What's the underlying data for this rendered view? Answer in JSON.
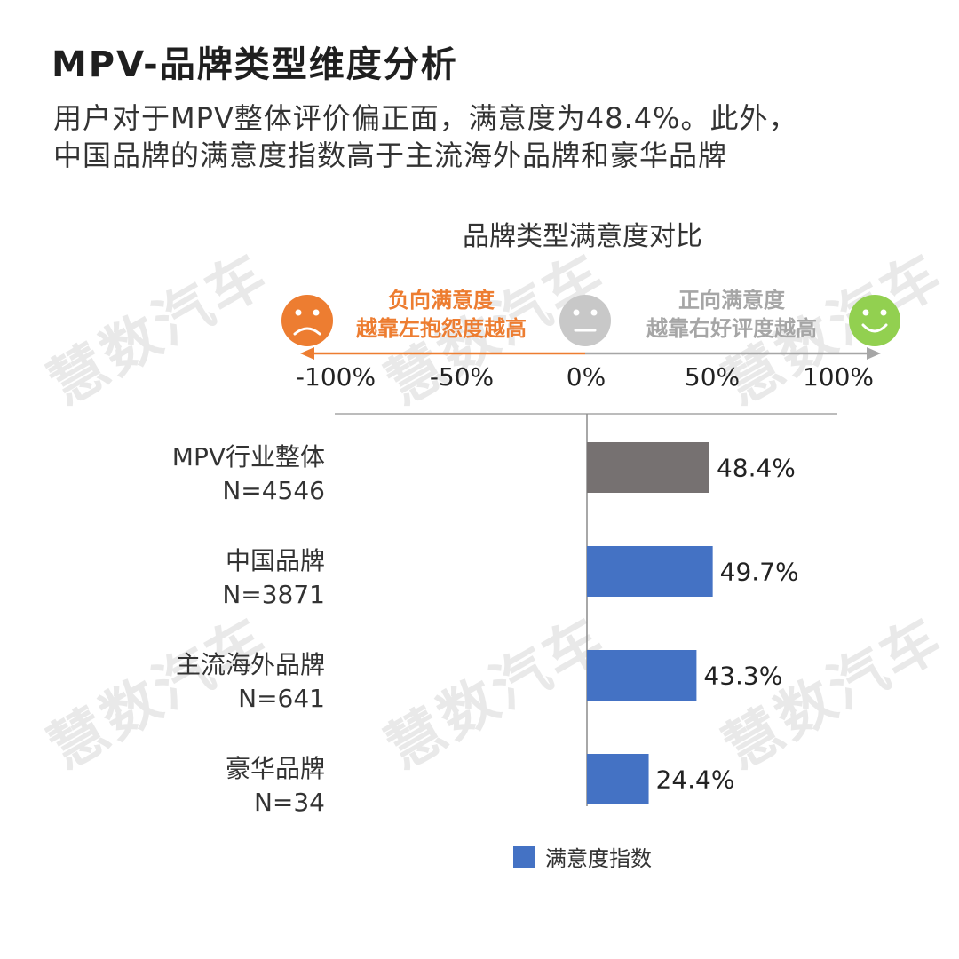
{
  "header": {
    "title": "MPV-品牌类型维度分析",
    "subtitle_line1": "用户对于MPV整体评价偏正面，满意度为48.4%。此外，",
    "subtitle_line2": "中国品牌的满意度指数高于主流海外品牌和豪华品牌"
  },
  "watermark_text": "慧数汽车",
  "legend_scale": {
    "negative_title": "负向满意度",
    "negative_desc": "越靠左抱怨度越高",
    "positive_title": "正向满意度",
    "positive_desc": "越靠右好评度越高",
    "negative_color": "#ed7d31",
    "positive_color": "#a6a6a6",
    "neutral_color": "#c8c8c8",
    "happy_color": "#92d050",
    "icons": [
      "sad-face-icon",
      "neutral-face-icon",
      "happy-face-icon"
    ]
  },
  "chart_data": {
    "type": "bar",
    "orientation": "horizontal",
    "title": "品牌类型满意度对比",
    "x_ticks": [
      "-100%",
      "-50%",
      "0%",
      "50%",
      "100%"
    ],
    "xlim": [
      -100,
      100
    ],
    "categories": [
      {
        "name": "MPV行业整体",
        "n": "N=4546"
      },
      {
        "name": "中国品牌",
        "n": "N=3871"
      },
      {
        "name": "主流海外品牌",
        "n": "N=641"
      },
      {
        "name": "豪华品牌",
        "n": "N=34"
      }
    ],
    "series": [
      {
        "name": "满意度指数",
        "values": [
          48.4,
          49.7,
          43.3,
          24.4
        ],
        "labels": [
          "48.4%",
          "49.7%",
          "43.3%",
          "24.4%"
        ],
        "colors": [
          "#767171",
          "#4472c4",
          "#4472c4",
          "#4472c4"
        ]
      }
    ],
    "legend_color": "#4472c4",
    "legend_position": "bottom"
  }
}
